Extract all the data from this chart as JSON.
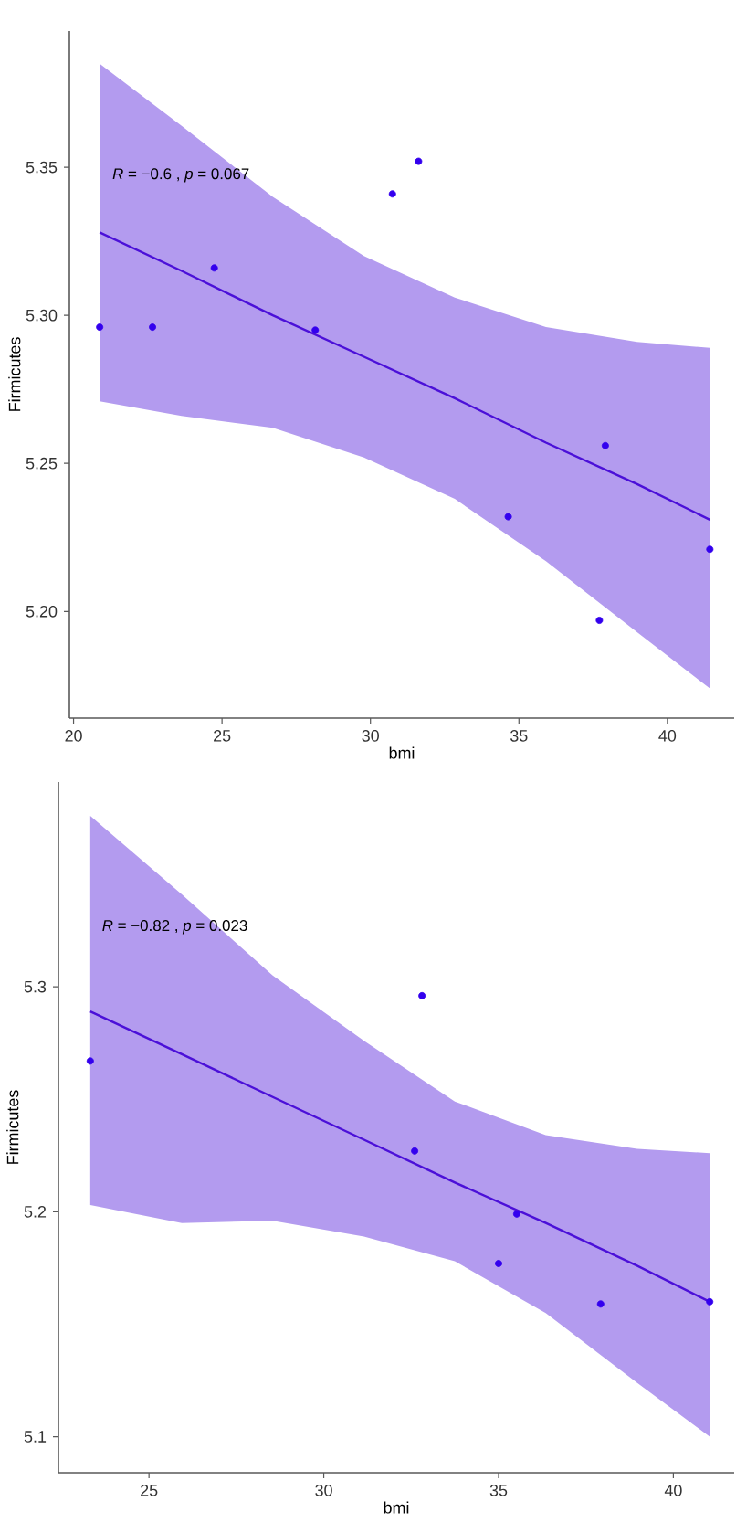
{
  "chart_data": [
    {
      "type": "scatter",
      "xlabel": "bmi",
      "ylabel": "Firmicutes",
      "xlim": [
        19.86,
        42.25
      ],
      "ylim": [
        5.164,
        5.396
      ],
      "xticks": [
        20,
        25,
        30,
        35,
        40
      ],
      "yticks": [
        {
          "value": 5.2,
          "label": "5.20"
        },
        {
          "value": 5.25,
          "label": "5.25"
        },
        {
          "value": 5.3,
          "label": "5.30"
        },
        {
          "value": 5.35,
          "label": "5.35"
        }
      ],
      "grid": false,
      "marker": "circle",
      "annotations": [
        "*R* = −0.6 , *p* = 0.067"
      ],
      "series": [
        {
          "type": "line",
          "color": "#4b10d8",
          "marker": "none",
          "x": [
            20.88,
            23.64,
            26.71,
            29.78,
            32.84,
            35.91,
            38.98,
            41.43
          ],
          "values": [
            5.328,
            5.315,
            5.3,
            5.286,
            5.272,
            5.257,
            5.243,
            5.231
          ],
          "lower": [
            5.271,
            5.266,
            5.262,
            5.252,
            5.238,
            5.217,
            5.193,
            5.174
          ],
          "upper": [
            5.385,
            5.364,
            5.34,
            5.32,
            5.306,
            5.296,
            5.291,
            5.289
          ]
        },
        {
          "color": "#3300ee",
          "x": [
            20.88,
            22.66,
            24.74,
            28.14,
            30.74,
            31.62,
            34.64,
            37.71,
            37.91,
            41.43
          ],
          "values": [
            5.296,
            5.296,
            5.316,
            5.295,
            5.341,
            5.352,
            5.232,
            5.197,
            5.256,
            5.221
          ]
        }
      ]
    },
    {
      "type": "scatter",
      "xlabel": "bmi",
      "ylabel": "Firmicutes",
      "xlim": [
        22.41,
        41.74
      ],
      "ylim": [
        5.084,
        5.391
      ],
      "xticks": [
        25,
        30,
        35,
        40
      ],
      "yticks": [
        5.1,
        5.2,
        5.3
      ],
      "grid": false,
      "marker": "circle",
      "annotations": [
        "*R* = −0.82 , *p* = 0.023"
      ],
      "series": [
        {
          "type": "line",
          "color": "#4b10d8",
          "marker": "none",
          "x": [
            23.32,
            25.94,
            28.54,
            31.15,
            33.75,
            36.35,
            38.96,
            41.04
          ],
          "values": [
            5.289,
            5.27,
            5.251,
            5.232,
            5.213,
            5.195,
            5.176,
            5.16
          ],
          "lower": [
            5.203,
            5.195,
            5.196,
            5.189,
            5.178,
            5.155,
            5.124,
            5.1
          ],
          "upper": [
            5.376,
            5.341,
            5.305,
            5.276,
            5.249,
            5.234,
            5.228,
            5.226
          ]
        },
        {
          "color": "#3300ee",
          "x": [
            23.32,
            32.6,
            32.81,
            35.0,
            35.52,
            37.92,
            41.04
          ],
          "values": [
            5.267,
            5.227,
            5.296,
            5.177,
            5.199,
            5.159,
            5.16
          ]
        }
      ]
    }
  ]
}
